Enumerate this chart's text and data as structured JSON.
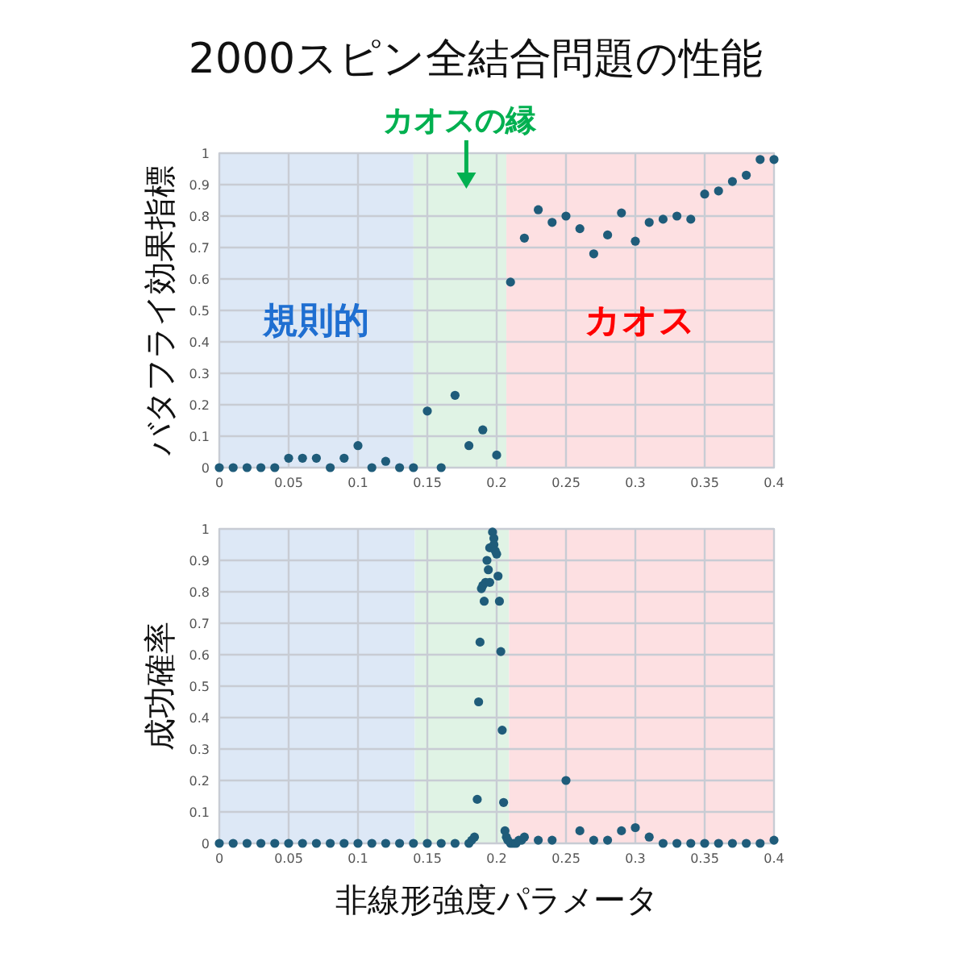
{
  "chart_data": [
    {
      "type": "scatter",
      "title": "2000スピン全結合問題の性能",
      "ylabel": "バタフライ効果指標",
      "x": [
        0,
        0.01,
        0.02,
        0.03,
        0.04,
        0.05,
        0.06,
        0.07,
        0.08,
        0.09,
        0.1,
        0.11,
        0.12,
        0.13,
        0.14,
        0.15,
        0.16,
        0.17,
        0.18,
        0.19,
        0.2,
        0.21,
        0.22,
        0.23,
        0.24,
        0.25,
        0.26,
        0.27,
        0.28,
        0.29,
        0.3,
        0.31,
        0.32,
        0.33,
        0.34,
        0.35,
        0.36,
        0.37,
        0.38,
        0.39,
        0.4
      ],
      "values": [
        0,
        0,
        0,
        0,
        0,
        0.03,
        0.03,
        0.03,
        0,
        0.03,
        0.07,
        0,
        0.02,
        0,
        0,
        0.18,
        0,
        0.23,
        0.07,
        0.12,
        0.04,
        0.59,
        0.73,
        0.82,
        0.78,
        0.8,
        0.76,
        0.68,
        0.74,
        0.81,
        0.72,
        0.78,
        0.79,
        0.8,
        0.79,
        0.87,
        0.88,
        0.91,
        0.93,
        0.98,
        0.98
      ],
      "color": "#1f5c7a",
      "marker": "circle",
      "grid": true,
      "xlim": [
        0,
        0.4
      ],
      "xticks": [
        0,
        0.05,
        0.1,
        0.15,
        0.2,
        0.25,
        0.3,
        0.35,
        0.4
      ],
      "ylim": [
        0,
        1
      ],
      "yticks": [
        0,
        0.1,
        0.2,
        0.3,
        0.4,
        0.5,
        0.6,
        0.7,
        0.8,
        0.9,
        1
      ],
      "bands": [
        {
          "axis": "x",
          "from": 0,
          "to": 0.14,
          "label": "規則的",
          "color": "#dde8f6"
        },
        {
          "axis": "x",
          "from": 0.14,
          "to": 0.207,
          "label": "カオスの縁",
          "color": "#e0f3e5"
        },
        {
          "axis": "x",
          "from": 0.207,
          "to": 0.4,
          "label": "カオス",
          "color": "#fde0e2"
        }
      ]
    },
    {
      "type": "scatter",
      "ylabel": "成功確率",
      "xlabel": "非線形強度パラメータ",
      "x": [
        0,
        0.01,
        0.02,
        0.03,
        0.04,
        0.05,
        0.06,
        0.07,
        0.08,
        0.09,
        0.1,
        0.11,
        0.12,
        0.13,
        0.14,
        0.15,
        0.16,
        0.17,
        0.18,
        0.182,
        0.184,
        0.186,
        0.187,
        0.188,
        0.189,
        0.19,
        0.191,
        0.192,
        0.193,
        0.194,
        0.195,
        0.195,
        0.197,
        0.198,
        0.198,
        0.199,
        0.2,
        0.201,
        0.202,
        0.203,
        0.204,
        0.205,
        0.206,
        0.207,
        0.208,
        0.21,
        0.212,
        0.214,
        0.216,
        0.218,
        0.22,
        0.23,
        0.24,
        0.25,
        0.26,
        0.27,
        0.28,
        0.29,
        0.3,
        0.31,
        0.32,
        0.33,
        0.34,
        0.35,
        0.36,
        0.37,
        0.38,
        0.39,
        0.4
      ],
      "values": [
        0,
        0,
        0,
        0,
        0,
        0,
        0,
        0,
        0,
        0,
        0,
        0,
        0,
        0,
        0,
        0,
        0,
        0,
        0,
        0.01,
        0.02,
        0.14,
        0.45,
        0.64,
        0.81,
        0.82,
        0.77,
        0.83,
        0.9,
        0.87,
        0.83,
        0.94,
        0.99,
        0.97,
        0.95,
        0.93,
        0.92,
        0.85,
        0.77,
        0.61,
        0.36,
        0.13,
        0.04,
        0.02,
        0.01,
        0,
        0,
        0,
        0.01,
        0.01,
        0.02,
        0.01,
        0.01,
        0.2,
        0.04,
        0.01,
        0.01,
        0.04,
        0.05,
        0.02,
        0,
        0,
        0,
        0,
        0,
        0,
        0,
        0,
        0.01
      ],
      "color": "#1f5c7a",
      "marker": "circle",
      "grid": true,
      "xlim": [
        0,
        0.4
      ],
      "xticks": [
        0,
        0.05,
        0.1,
        0.15,
        0.2,
        0.25,
        0.3,
        0.35,
        0.4
      ],
      "ylim": [
        0,
        1
      ],
      "yticks": [
        0,
        0.1,
        0.2,
        0.3,
        0.4,
        0.5,
        0.6,
        0.7,
        0.8,
        0.9,
        1
      ],
      "bands": [
        {
          "axis": "x",
          "from": 0,
          "to": 0.141,
          "color": "#dde8f6"
        },
        {
          "axis": "x",
          "from": 0.141,
          "to": 0.209,
          "color": "#e0f3e5"
        },
        {
          "axis": "x",
          "from": 0.209,
          "to": 0.4,
          "color": "#fde0e2"
        }
      ]
    }
  ]
}
